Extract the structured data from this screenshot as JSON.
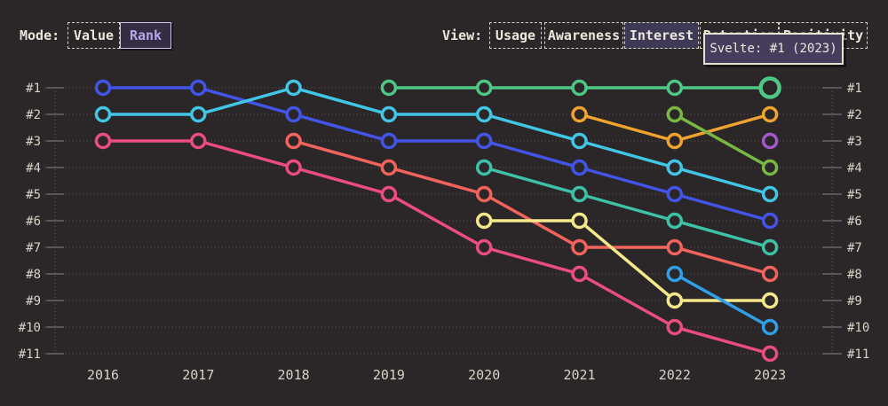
{
  "toolbar": {
    "mode_label": "Mode:",
    "mode_buttons": [
      {
        "label": "Value",
        "selected": false
      },
      {
        "label": "Rank",
        "selected": true
      }
    ],
    "view_label": "View:",
    "view_buttons": [
      {
        "label": "Usage",
        "selected": false
      },
      {
        "label": "Awareness",
        "selected": false
      },
      {
        "label": "Interest",
        "selected": true
      },
      {
        "label": "Retention",
        "selected": false
      },
      {
        "label": "Positivity",
        "selected": false
      }
    ]
  },
  "tooltip": {
    "text": "Svelte: #1 (2023)"
  },
  "colors": {
    "background": "#2b2628",
    "text": "#ece6dc",
    "axis_label": "#d9d3c7",
    "selected_fill": "#3e3954",
    "rank_accent": "#b6a6ee",
    "tooltip_border": "#e9e1d2"
  },
  "chart_data": {
    "type": "line",
    "subtype": "bump-rank",
    "title": "",
    "xlabel": "",
    "ylabel": "",
    "x": [
      2016,
      2017,
      2018,
      2019,
      2020,
      2021,
      2022,
      2023
    ],
    "y_rank_labels": [
      "#1",
      "#2",
      "#3",
      "#4",
      "#5",
      "#6",
      "#7",
      "#8",
      "#9",
      "#10",
      "#11"
    ],
    "y_axis_sides": [
      "left",
      "right"
    ],
    "grid": "dotted-horizontal",
    "legend": "none",
    "highlight": {
      "series": "Svelte",
      "rank": 1,
      "year": 2023,
      "tooltip": "Svelte: #1 (2023)"
    },
    "series": [
      {
        "name": "blue",
        "color": "#4355e8",
        "points": [
          [
            2016,
            1
          ],
          [
            2017,
            1
          ],
          [
            2018,
            2
          ],
          [
            2019,
            3
          ],
          [
            2020,
            3
          ],
          [
            2021,
            4
          ],
          [
            2022,
            5
          ],
          [
            2023,
            6
          ]
        ]
      },
      {
        "name": "cyan",
        "color": "#41c7e5",
        "points": [
          [
            2016,
            2
          ],
          [
            2017,
            2
          ],
          [
            2018,
            1
          ],
          [
            2019,
            2
          ],
          [
            2020,
            2
          ],
          [
            2021,
            3
          ],
          [
            2022,
            4
          ],
          [
            2023,
            5
          ]
        ]
      },
      {
        "name": "pink",
        "color": "#ea4d7e",
        "points": [
          [
            2016,
            3
          ],
          [
            2017,
            3
          ],
          [
            2018,
            4
          ],
          [
            2019,
            5
          ],
          [
            2020,
            7
          ],
          [
            2021,
            8
          ],
          [
            2022,
            10
          ],
          [
            2023,
            11
          ]
        ]
      },
      {
        "name": "salmon",
        "color": "#f2635c",
        "points": [
          [
            2018,
            3
          ],
          [
            2019,
            4
          ],
          [
            2020,
            5
          ],
          [
            2021,
            7
          ],
          [
            2022,
            7
          ],
          [
            2023,
            8
          ]
        ]
      },
      {
        "name": "teal",
        "color": "#3dc2a6",
        "points": [
          [
            2020,
            4
          ],
          [
            2021,
            5
          ],
          [
            2022,
            6
          ],
          [
            2023,
            7
          ]
        ]
      },
      {
        "name": "yellow",
        "color": "#f5e88a",
        "points": [
          [
            2020,
            6
          ],
          [
            2021,
            6
          ],
          [
            2022,
            9
          ],
          [
            2023,
            9
          ]
        ]
      },
      {
        "name": "orange",
        "color": "#f0a32e",
        "points": [
          [
            2021,
            2
          ],
          [
            2022,
            3
          ],
          [
            2023,
            2
          ]
        ]
      },
      {
        "name": "olive",
        "color": "#79b842",
        "points": [
          [
            2022,
            2
          ],
          [
            2023,
            4
          ]
        ]
      },
      {
        "name": "lightblue",
        "color": "#309fe8",
        "points": [
          [
            2022,
            8
          ],
          [
            2023,
            10
          ]
        ]
      },
      {
        "name": "purple",
        "color": "#a558cc",
        "points": [
          [
            2023,
            3
          ]
        ]
      },
      {
        "name": "Svelte",
        "color": "#4dc885",
        "points": [
          [
            2019,
            1
          ],
          [
            2020,
            1
          ],
          [
            2021,
            1
          ],
          [
            2022,
            1
          ],
          [
            2023,
            1
          ]
        ],
        "highlight_last": true
      }
    ]
  }
}
